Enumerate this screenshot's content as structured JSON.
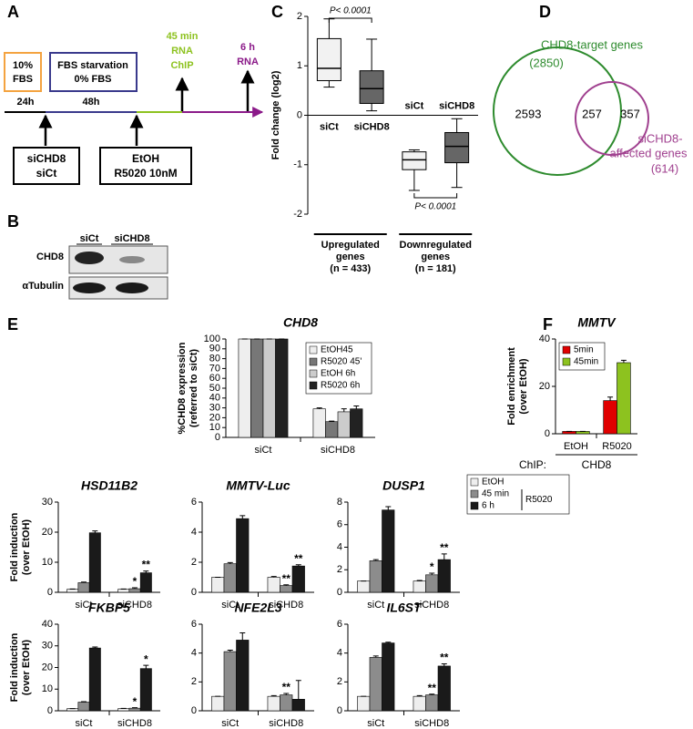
{
  "panel_labels": [
    "A",
    "B",
    "C",
    "D",
    "E",
    "F"
  ],
  "panel_a": {
    "boxes": [
      {
        "lines": [
          "10%",
          "FBS"
        ]
      },
      {
        "lines": [
          "FBS starvation",
          "0% FBS"
        ]
      },
      {
        "lines": [
          "siCHD8",
          "siCt"
        ]
      },
      {
        "lines": [
          "EtOH",
          "R5020 10nM"
        ]
      }
    ],
    "times": [
      "24h",
      "48h"
    ],
    "harvests": [
      {
        "lines": [
          "45 min",
          "RNA",
          "ChIP"
        ]
      },
      {
        "lines": [
          "6 h",
          "RNA"
        ]
      }
    ]
  },
  "panel_b": {
    "lanes": [
      "siCt",
      "siCHD8"
    ],
    "rows": [
      "CHD8",
      "αTubulin"
    ]
  },
  "panel_d": {
    "sets": [
      {
        "label": [
          "CHD8-target genes"
        ],
        "total": "(2850)"
      },
      {
        "label": [
          "siCHD8-",
          "affected genes"
        ],
        "total": "(614)"
      }
    ],
    "only_target": 2593,
    "overlap": 257,
    "only_affected": 357
  },
  "chart_data": [
    {
      "type": "box",
      "y_label": [
        "Fold change (log2)"
      ],
      "categories": [
        "siCt",
        "siCHD8",
        "siCt",
        "siCHD8"
      ],
      "low": [
        0.57,
        0.09,
        -1.52,
        -1.46
      ],
      "q1": [
        0.7,
        0.24,
        -1.1,
        -0.96
      ],
      "median": [
        0.95,
        0.54,
        -0.9,
        -0.63
      ],
      "q3": [
        1.55,
        0.9,
        -0.74,
        -0.35
      ],
      "high": [
        1.95,
        1.54,
        -0.7,
        -0.07
      ],
      "groups": [
        {
          "lines": [
            "Upregulated",
            "genes",
            "(n = 433)"
          ]
        },
        {
          "lines": [
            "Downregulated",
            "genes",
            "(n = 181)"
          ]
        }
      ],
      "annotations": [
        "P< 0.0001",
        "P< 0.0001"
      ],
      "ylim": [
        -2,
        2
      ],
      "yticks": [
        -2,
        -1,
        0,
        1,
        2
      ]
    },
    {
      "type": "bar",
      "title": "CHD8",
      "y_label": [
        "%CHD8 expression",
        "(referred to siCt)"
      ],
      "categories": [
        "siCt",
        "siCHD8"
      ],
      "legend": "upper right",
      "series": [
        {
          "name": "EtOH45",
          "color": "#eeeeee",
          "values": [
            100,
            29
          ],
          "errors": [
            0,
            1
          ]
        },
        {
          "name": "R5020 45'",
          "color": "#777777",
          "values": [
            100,
            16
          ],
          "errors": [
            0,
            0.5
          ]
        },
        {
          "name": "EtOH 6h",
          "color": "#cccccc",
          "values": [
            100,
            26
          ],
          "errors": [
            0,
            3
          ]
        },
        {
          "name": "R5020 6h",
          "color": "#222222",
          "values": [
            100,
            29
          ],
          "errors": [
            0,
            3
          ]
        }
      ],
      "ylim": [
        0,
        100
      ],
      "yticks": [
        0,
        10,
        20,
        30,
        40,
        50,
        60,
        70,
        80,
        90,
        100
      ]
    },
    {
      "type": "bar",
      "title": "HSD11B2",
      "y_label": [
        "Fold induction",
        "(over EtOH)"
      ],
      "categories": [
        "siCt",
        "siCHD8"
      ],
      "series": [
        {
          "color": "#eeeeee",
          "values": [
            1,
            1
          ],
          "errors": [
            0.1,
            0.1
          ]
        },
        {
          "color": "#8c8c8c",
          "values": [
            3.2,
            1.2
          ],
          "errors": [
            0.2,
            0.3
          ],
          "stars": [
            null,
            "*"
          ]
        },
        {
          "color": "#1a1a1a",
          "values": [
            19.8,
            6.5
          ],
          "errors": [
            0.6,
            0.6
          ],
          "stars": [
            null,
            "**"
          ]
        }
      ],
      "ylim": [
        0,
        30
      ],
      "yticks": [
        0,
        10,
        20,
        30
      ]
    },
    {
      "type": "bar",
      "title": "MMTV-Luc",
      "categories": [
        "siCt",
        "siCHD8"
      ],
      "series": [
        {
          "color": "#eeeeee",
          "values": [
            1,
            1
          ],
          "errors": [
            0,
            0.05
          ]
        },
        {
          "color": "#8c8c8c",
          "values": [
            1.9,
            0.45
          ],
          "errors": [
            0.08,
            0.05
          ],
          "stars": [
            null,
            "**"
          ]
        },
        {
          "color": "#1a1a1a",
          "values": [
            4.9,
            1.75
          ],
          "errors": [
            0.2,
            0.08
          ],
          "stars": [
            null,
            "**"
          ]
        }
      ],
      "ylim": [
        0,
        6
      ],
      "yticks": [
        0,
        2,
        4,
        6
      ]
    },
    {
      "type": "bar",
      "title": "DUSP1",
      "categories": [
        "siCt",
        "siCHD8"
      ],
      "legend": "outside right",
      "legend_group_label": "R5020",
      "series": [
        {
          "name": "EtOH",
          "color": "#eeeeee",
          "values": [
            1,
            1
          ],
          "errors": [
            0,
            0.05
          ]
        },
        {
          "name": "45 min",
          "color": "#8c8c8c",
          "values": [
            2.8,
            1.55
          ],
          "errors": [
            0.1,
            0.15
          ],
          "stars": [
            null,
            "*"
          ]
        },
        {
          "name": "6 h",
          "color": "#1a1a1a",
          "values": [
            7.3,
            2.9
          ],
          "errors": [
            0.3,
            0.5
          ],
          "stars": [
            null,
            "**"
          ]
        }
      ],
      "ylim": [
        0,
        8
      ],
      "yticks": [
        0,
        2,
        4,
        6,
        8
      ]
    },
    {
      "type": "bar",
      "title": "FKBP5",
      "y_label": [
        "Fold induction",
        "(over EtOH)"
      ],
      "categories": [
        "siCt",
        "siCHD8"
      ],
      "series": [
        {
          "color": "#eeeeee",
          "values": [
            1,
            1
          ],
          "errors": [
            0,
            0.1
          ]
        },
        {
          "color": "#8c8c8c",
          "values": [
            4,
            1.2
          ],
          "errors": [
            0.2,
            0.2
          ],
          "stars": [
            null,
            "*"
          ]
        },
        {
          "color": "#1a1a1a",
          "values": [
            29,
            19.5
          ],
          "errors": [
            0.5,
            1.5
          ],
          "stars": [
            null,
            "*"
          ]
        }
      ],
      "ylim": [
        0,
        40
      ],
      "yticks": [
        0,
        10,
        20,
        30,
        40
      ]
    },
    {
      "type": "bar",
      "title": "NFE2L3",
      "categories": [
        "siCt",
        "siCHD8"
      ],
      "series": [
        {
          "color": "#eeeeee",
          "values": [
            1,
            1
          ],
          "errors": [
            0,
            0.05
          ]
        },
        {
          "color": "#8c8c8c",
          "values": [
            4.1,
            1.1
          ],
          "errors": [
            0.1,
            0.1
          ],
          "stars": [
            null,
            "**"
          ]
        },
        {
          "color": "#1a1a1a",
          "values": [
            4.9,
            0.8
          ],
          "errors": [
            0.5,
            1.3
          ]
        }
      ],
      "ylim": [
        0,
        6
      ],
      "yticks": [
        0,
        2,
        4,
        6
      ]
    },
    {
      "type": "bar",
      "title": "IL6ST",
      "categories": [
        "siCt",
        "siCHD8"
      ],
      "series": [
        {
          "color": "#eeeeee",
          "values": [
            1,
            1
          ],
          "errors": [
            0,
            0.05
          ]
        },
        {
          "color": "#8c8c8c",
          "values": [
            3.7,
            1.1
          ],
          "errors": [
            0.1,
            0.05
          ],
          "stars": [
            null,
            "**"
          ]
        },
        {
          "color": "#1a1a1a",
          "values": [
            4.7,
            3.1
          ],
          "errors": [
            0.05,
            0.15
          ],
          "stars": [
            null,
            "**"
          ]
        }
      ],
      "ylim": [
        0,
        6
      ],
      "yticks": [
        0,
        2,
        4,
        6
      ]
    },
    {
      "type": "bar",
      "title": "MMTV",
      "y_label": [
        "Fold enrichment",
        "(over EtOH)"
      ],
      "categories": [
        "EtOH",
        "R5020"
      ],
      "legend": "upper left",
      "x_label_prefix": "ChIP:",
      "x_label": "CHD8",
      "series": [
        {
          "name": "5min",
          "color": "#e00000",
          "values": [
            1,
            14
          ],
          "errors": [
            0,
            1.5
          ]
        },
        {
          "name": "45min",
          "color": "#8dc21f",
          "values": [
            1,
            30
          ],
          "errors": [
            0,
            1
          ]
        }
      ],
      "ylim": [
        0,
        40
      ],
      "yticks": [
        0,
        20,
        40
      ]
    }
  ]
}
